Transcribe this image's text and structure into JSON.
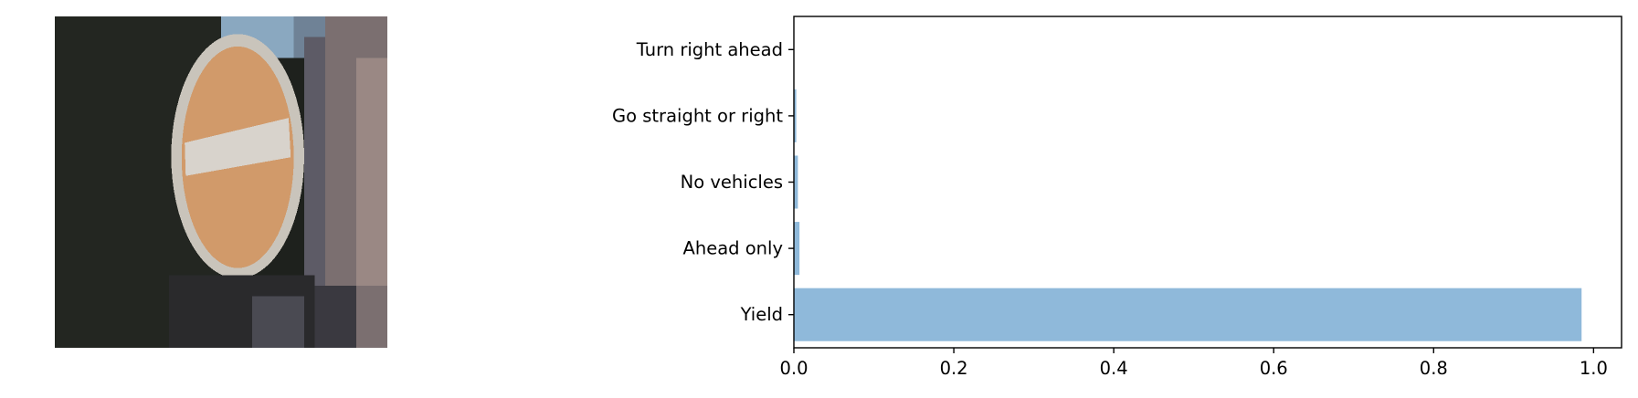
{
  "image": {
    "subject": "traffic-sign-thumbnail",
    "colors": {
      "background_dark": "#1e211d",
      "sign_fill": "#d19a6a",
      "sign_rim": "#c9c4bb",
      "bar_white": "#d8d3cc",
      "pole_gray": "#5d5b66",
      "sky": "#8aa8c0"
    }
  },
  "chart_data": {
    "type": "bar",
    "orientation": "horizontal",
    "title": "",
    "xlabel": "",
    "ylabel": "",
    "categories": [
      "Yield",
      "Ahead only",
      "No vehicles",
      "Go straight or right",
      "Turn right ahead"
    ],
    "values": [
      0.985,
      0.007,
      0.005,
      0.003,
      0.0005
    ],
    "xlim": [
      0,
      1.035
    ],
    "xticks": [
      "0.0",
      "0.2",
      "0.4",
      "0.6",
      "0.8",
      "1.0"
    ],
    "xtick_values": [
      0.0,
      0.2,
      0.4,
      0.6,
      0.8,
      1.0
    ],
    "grid": false,
    "legend": "none",
    "bar_color": "#8fb9da"
  }
}
